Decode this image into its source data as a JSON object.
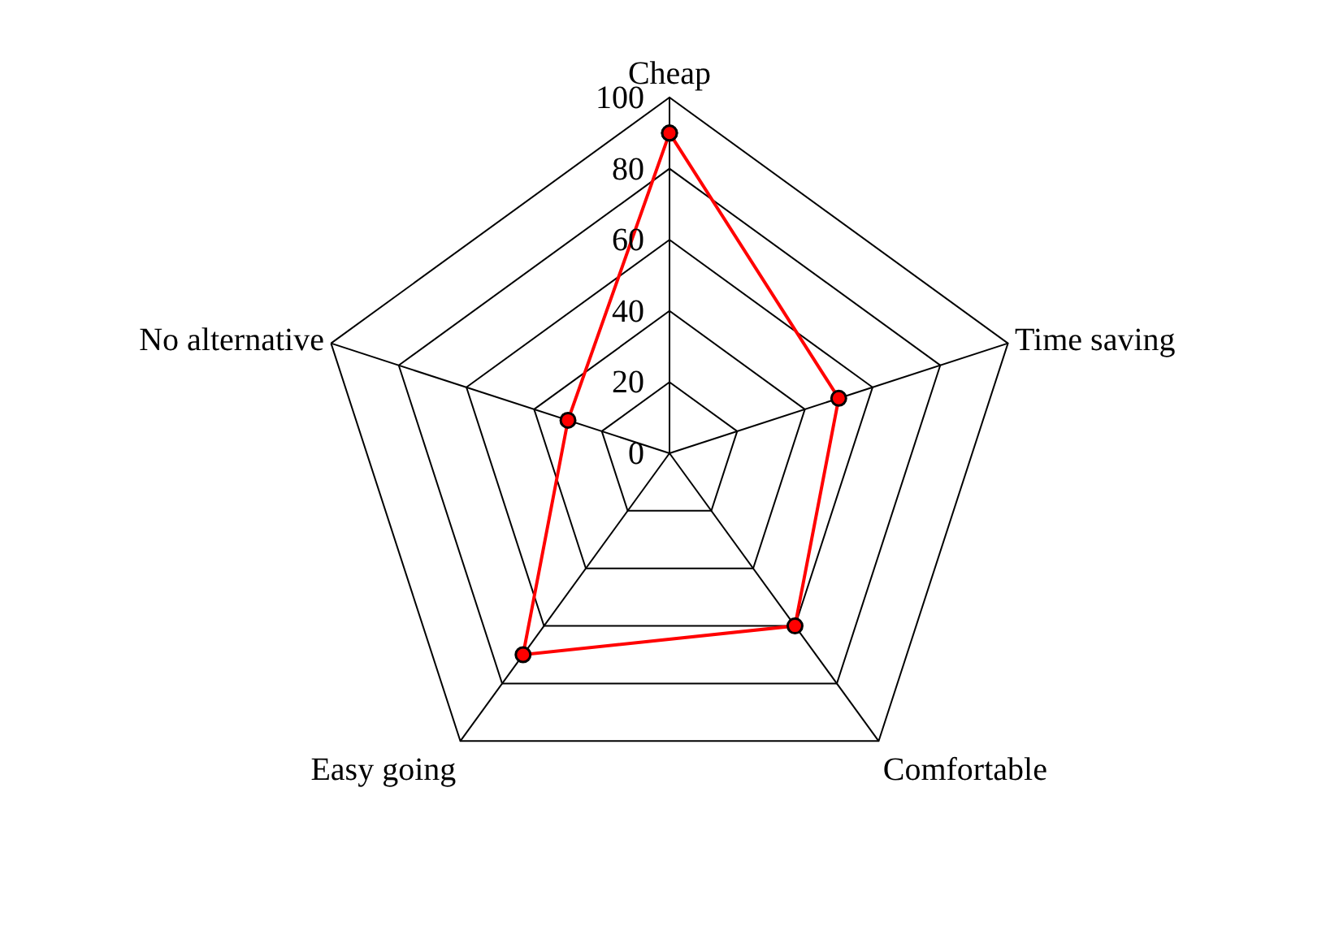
{
  "chart_data": {
    "type": "radar",
    "categories": [
      "Cheap",
      "Time saving",
      "Comfortable",
      "Easy going",
      "No alternative"
    ],
    "series": [
      {
        "color": "#ff0000",
        "values": [
          90,
          50,
          60,
          70,
          30
        ]
      }
    ],
    "ylim": [
      0,
      100
    ],
    "yticks": [
      0,
      20,
      40,
      60,
      80,
      100
    ],
    "grid": true,
    "marker": "circle"
  }
}
